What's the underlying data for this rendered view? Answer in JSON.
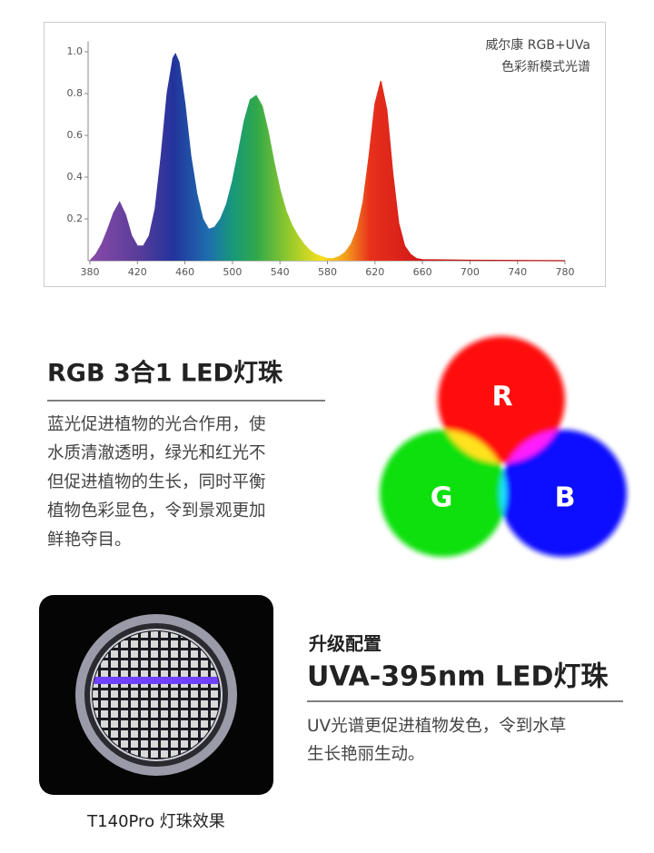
{
  "chart_data": {
    "type": "area",
    "annotation": [
      "威尔康 RGB+UVa",
      "色彩新模式光谱"
    ],
    "x": [
      380,
      385,
      390,
      395,
      400,
      405,
      410,
      415,
      420,
      425,
      430,
      435,
      440,
      445,
      450,
      452,
      455,
      460,
      465,
      470,
      475,
      480,
      485,
      490,
      495,
      500,
      505,
      510,
      515,
      520,
      525,
      530,
      535,
      540,
      545,
      550,
      555,
      560,
      565,
      570,
      575,
      580,
      585,
      590,
      595,
      600,
      605,
      610,
      615,
      620,
      625,
      630,
      635,
      640,
      645,
      650,
      655,
      660,
      700,
      780
    ],
    "values": [
      0,
      0.03,
      0.08,
      0.15,
      0.23,
      0.28,
      0.22,
      0.12,
      0.07,
      0.07,
      0.12,
      0.25,
      0.5,
      0.8,
      0.97,
      0.99,
      0.95,
      0.75,
      0.5,
      0.32,
      0.2,
      0.15,
      0.16,
      0.2,
      0.27,
      0.38,
      0.52,
      0.67,
      0.77,
      0.79,
      0.74,
      0.62,
      0.47,
      0.34,
      0.24,
      0.17,
      0.12,
      0.08,
      0.05,
      0.03,
      0.02,
      0.01,
      0.01,
      0.02,
      0.04,
      0.08,
      0.15,
      0.28,
      0.5,
      0.75,
      0.86,
      0.72,
      0.42,
      0.18,
      0.07,
      0.03,
      0.01,
      0.005,
      0.002,
      0
    ],
    "xlim": [
      380,
      780
    ],
    "xticks": [
      380,
      420,
      460,
      500,
      540,
      580,
      620,
      660,
      700,
      740,
      780
    ],
    "ylim": [
      0,
      1.05
    ],
    "yticks": [
      0.2,
      0.4,
      0.6,
      0.8,
      {
        "value": 1,
        "label": "1.0"
      }
    ]
  },
  "rgb_section": {
    "title": "RGB 3合1 LED灯珠",
    "lines": [
      "蓝光促进植物的光合作用，使",
      "水质清澈透明，绿光和红光不",
      "但促进植物的生长，同时平衡",
      "植物色彩显色，令到景观更加",
      "鲜艳夺目。"
    ],
    "labels": [
      "R",
      "G",
      "B"
    ]
  },
  "uva_section": {
    "subtitle": "升级配置",
    "title": "UVA-395nm LED灯珠",
    "lines": [
      "UV光谱更促进植物发色，令到水草",
      "生长艳丽生动。"
    ],
    "caption": "T140Pro 灯珠效果"
  }
}
